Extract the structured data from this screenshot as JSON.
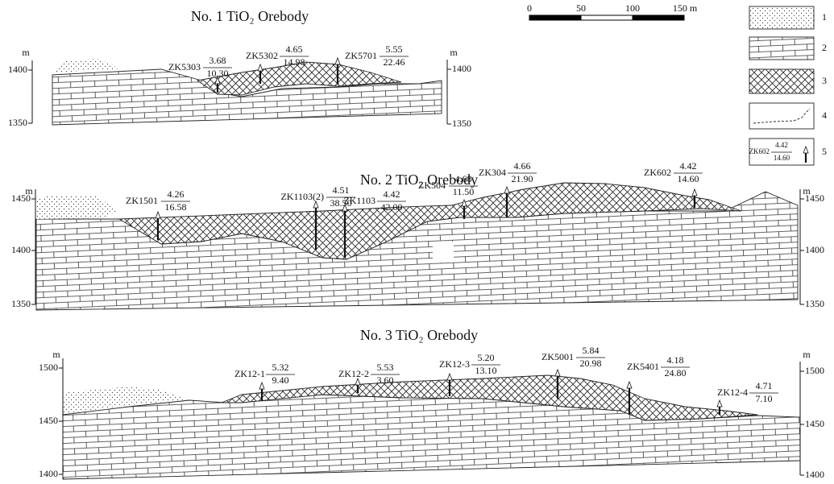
{
  "scale_bar": {
    "labels": [
      "0",
      "50",
      "100",
      "150 m"
    ]
  },
  "legend": [
    {
      "number": "1"
    },
    {
      "number": "2"
    },
    {
      "number": "3"
    },
    {
      "number": "4"
    },
    {
      "number": "5",
      "sample": {
        "name": "ZK602",
        "numerator": "4.42",
        "denominator": "14.60"
      }
    }
  ],
  "sections": [
    {
      "title": "No. 1 TiO₂ Orebody",
      "unit_left": "m",
      "unit_right": "m",
      "ticks_left": [
        "1400",
        "1350"
      ],
      "ticks_right": [
        "1400",
        "1350"
      ],
      "boreholes": [
        {
          "name": "ZK5303",
          "numerator": "3.68",
          "denominator": "10.30"
        },
        {
          "name": "ZK5302",
          "numerator": "4.65",
          "denominator": "14.98"
        },
        {
          "name": "ZK5701",
          "numerator": "5.55",
          "denominator": "22.46"
        }
      ]
    },
    {
      "title": "No. 2 TiO₂ Orebody",
      "unit_left": "m",
      "unit_right": "m",
      "ticks_left": [
        "1450",
        "1400",
        "1350"
      ],
      "ticks_right": [
        "1450",
        "1400",
        "1350"
      ],
      "boreholes": [
        {
          "name": "ZK1501",
          "numerator": "4.26",
          "denominator": "16.58"
        },
        {
          "name": "ZK1103(2)",
          "numerator": "4.51",
          "denominator": "38.50"
        },
        {
          "name": "ZK1103",
          "numerator": "4.42",
          "denominator": "42.00"
        },
        {
          "name": "ZK504",
          "numerator": "4.68",
          "denominator": "11.50"
        },
        {
          "name": "ZK304",
          "numerator": "4.66",
          "denominator": "21.90"
        },
        {
          "name": "ZK602",
          "numerator": "4.42",
          "denominator": "14.60"
        }
      ]
    },
    {
      "title": "No. 3 TiO₂ Orebody",
      "unit_left": "m",
      "unit_right": "m",
      "ticks_left": [
        "1500",
        "1450",
        "1400"
      ],
      "ticks_right": [
        "1500",
        "1450",
        "1400"
      ],
      "boreholes": [
        {
          "name": "ZK12-1",
          "numerator": "5.32",
          "denominator": "9.40"
        },
        {
          "name": "ZK12-2",
          "numerator": "5.53",
          "denominator": "3.60"
        },
        {
          "name": "ZK12-3",
          "numerator": "5.20",
          "denominator": "13.10"
        },
        {
          "name": "ZK5001",
          "numerator": "5.84",
          "denominator": "20.98"
        },
        {
          "name": "ZK5401",
          "numerator": "4.18",
          "denominator": "24.80"
        },
        {
          "name": "ZK12-4",
          "numerator": "4.71",
          "denominator": "7.10"
        }
      ]
    }
  ]
}
